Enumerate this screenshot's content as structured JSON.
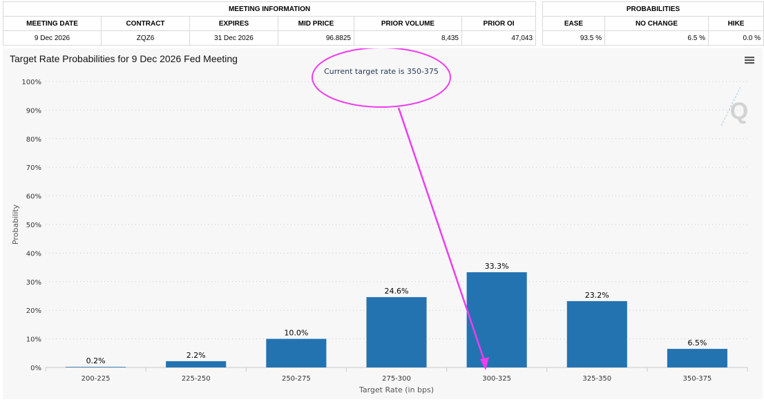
{
  "meeting_info": {
    "header": "MEETING INFORMATION",
    "columns": [
      "MEETING DATE",
      "CONTRACT",
      "EXPIRES",
      "MID PRICE",
      "PRIOR VOLUME",
      "PRIOR OI"
    ],
    "values": [
      "9 Dec 2026",
      "ZQZ6",
      "31 Dec 2026",
      "96.8825",
      "8,435",
      "47,043"
    ]
  },
  "probabilities": {
    "header": "PROBABILITIES",
    "columns": [
      "EASE",
      "NO CHANGE",
      "HIKE"
    ],
    "values": [
      "93.5 %",
      "6.5 %",
      "0.0 %"
    ]
  },
  "menu_icon": "hamburger-menu-icon",
  "watermark": "Q",
  "colors": {
    "bar": "#2473b1",
    "annotation": "#f03cf0",
    "panel": "#f7f7f7"
  },
  "chart_data": {
    "type": "bar",
    "title": "Target Rate Probabilities for 9 Dec 2026 Fed Meeting",
    "xlabel": "Target Rate (in bps)",
    "ylabel": "Probability",
    "categories": [
      "200-225",
      "225-250",
      "250-275",
      "275-300",
      "300-325",
      "325-350",
      "350-375"
    ],
    "values": [
      0.2,
      2.2,
      10.0,
      24.6,
      33.3,
      23.2,
      6.5
    ],
    "data_labels": [
      "0.2%",
      "2.2%",
      "10.0%",
      "24.6%",
      "33.3%",
      "23.2%",
      "6.5%"
    ],
    "ylim": [
      0,
      100
    ],
    "yticks": [
      0,
      10,
      20,
      30,
      40,
      50,
      60,
      70,
      80,
      90,
      100
    ],
    "ytick_labels": [
      "0%",
      "10%",
      "20%",
      "30%",
      "40%",
      "50%",
      "60%",
      "70%",
      "80%",
      "90%",
      "100%"
    ],
    "grid": true,
    "legend": "none",
    "annotation": "Current target rate is 350-375"
  }
}
